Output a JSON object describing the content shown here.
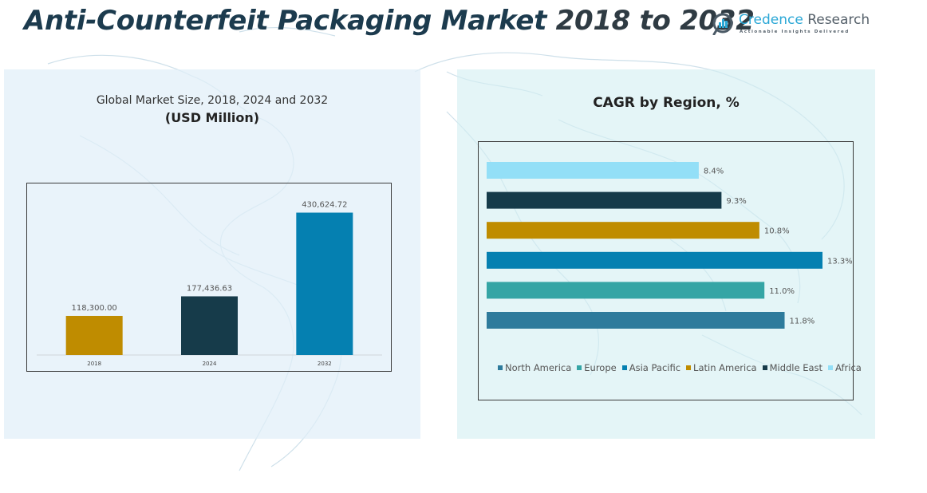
{
  "header": {
    "title_main": "Anti-Counterfeit Packaging Market",
    "title_years": "2018 to 2032",
    "logo_name_1": "Credence",
    "logo_name_2": "Research",
    "logo_tagline": "Actionable Insights Delivered",
    "logo_icon": "bar-chart-magnifier-icon"
  },
  "left_panel": {
    "subtitle": "Global Market Size, 2018, 2024 and 2032",
    "unit": "(USD Million)"
  },
  "right_panel": {
    "title": "CAGR by Region, %"
  },
  "chart_data": [
    {
      "type": "bar",
      "title": "Global Market Size, 2018, 2024 and 2032",
      "subtitle": "(USD Million)",
      "categories": [
        "2018",
        "2024",
        "2032"
      ],
      "values": [
        118300.0,
        177436.63,
        430624.72
      ],
      "value_labels": [
        "118,300.00",
        "177,436.63",
        "430,624.72"
      ],
      "colors": [
        "#bf8c00",
        "#163b4a",
        "#0580b1"
      ],
      "xlabel": "",
      "ylabel": "",
      "ylim": [
        0,
        480000
      ],
      "grid": false,
      "legend": "none"
    },
    {
      "type": "bar",
      "orientation": "horizontal",
      "title": "CAGR by Region, %",
      "categories": [
        "North America",
        "Europe",
        "Asia Pacific",
        "Latin America",
        "Middle East",
        "Africa"
      ],
      "values": [
        11.8,
        11.0,
        13.3,
        10.8,
        9.3,
        8.4
      ],
      "value_labels": [
        "11.8%",
        "11.0%",
        "13.3%",
        "10.8%",
        "9.3%",
        "8.4%"
      ],
      "colors": [
        "#2e7b9c",
        "#35a5a5",
        "#0580b1",
        "#bf8c00",
        "#163b4a",
        "#93dff7"
      ],
      "order_bottom_to_top": [
        "North America",
        "Europe",
        "Asia Pacific",
        "Latin America",
        "Middle East",
        "Africa"
      ],
      "xlim": [
        0,
        13.3
      ],
      "grid": false,
      "legend": "bottom"
    }
  ]
}
